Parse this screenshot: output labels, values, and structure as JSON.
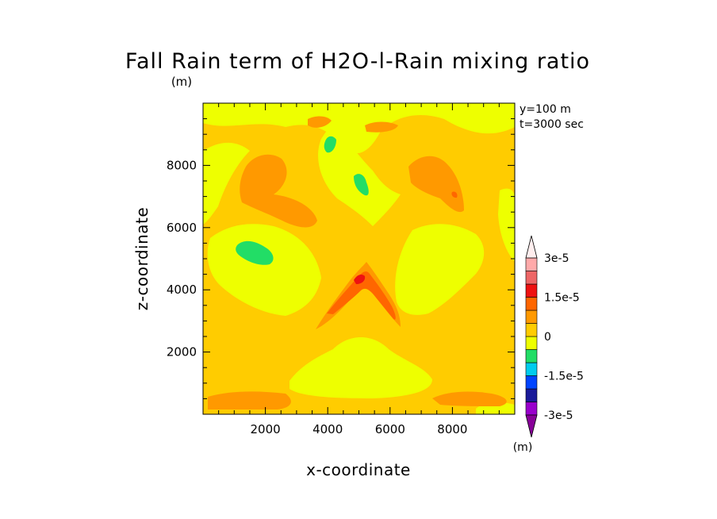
{
  "chart_data": {
    "type": "heatmap",
    "title": "Fall Rain term of H2O-l-Rain mixing ratio",
    "title_unit": "(m)",
    "xlabel": "x-coordinate",
    "ylabel": "z-coordinate",
    "annotation_y": "y=100 m",
    "annotation_t": "t=3000 sec",
    "xlim": [
      0,
      10000
    ],
    "ylim": [
      0,
      10000
    ],
    "xticks": [
      2000,
      4000,
      6000,
      8000
    ],
    "yticks": [
      2000,
      4000,
      6000,
      8000
    ],
    "xtick_labels": [
      "2000",
      "4000",
      "6000",
      "8000"
    ],
    "ytick_labels": [
      "2000",
      "4000",
      "6000",
      "8000"
    ],
    "colorbar": {
      "unit": "(m)",
      "labels": [
        "3e-5",
        "1.5e-5",
        "0",
        "-1.5e-5",
        "-3e-5"
      ],
      "levels": [
        -3e-05,
        -2.5e-05,
        -2e-05,
        -1.5e-05,
        -1e-05,
        -5e-06,
        0,
        5e-06,
        1e-05,
        1.5e-05,
        2e-05,
        2.5e-05,
        3e-05
      ],
      "colors_bottom_to_top": [
        "#9900cc",
        "#1a1a99",
        "#0044ff",
        "#00ccee",
        "#22dd66",
        "#eeff00",
        "#ffcc00",
        "#ff9900",
        "#ff6600",
        "#ee1111",
        "#ee6666",
        "#ffaaaa"
      ],
      "min_color": "#880099",
      "max_color": "#ffeeee"
    },
    "field_colors": {
      "background": "#ffcc00",
      "low_pos": "#eeff00",
      "mid_pos": "#ff9900",
      "high_pos": "#ff6600",
      "peak": "#ee1111",
      "neg": "#22dd66"
    }
  }
}
